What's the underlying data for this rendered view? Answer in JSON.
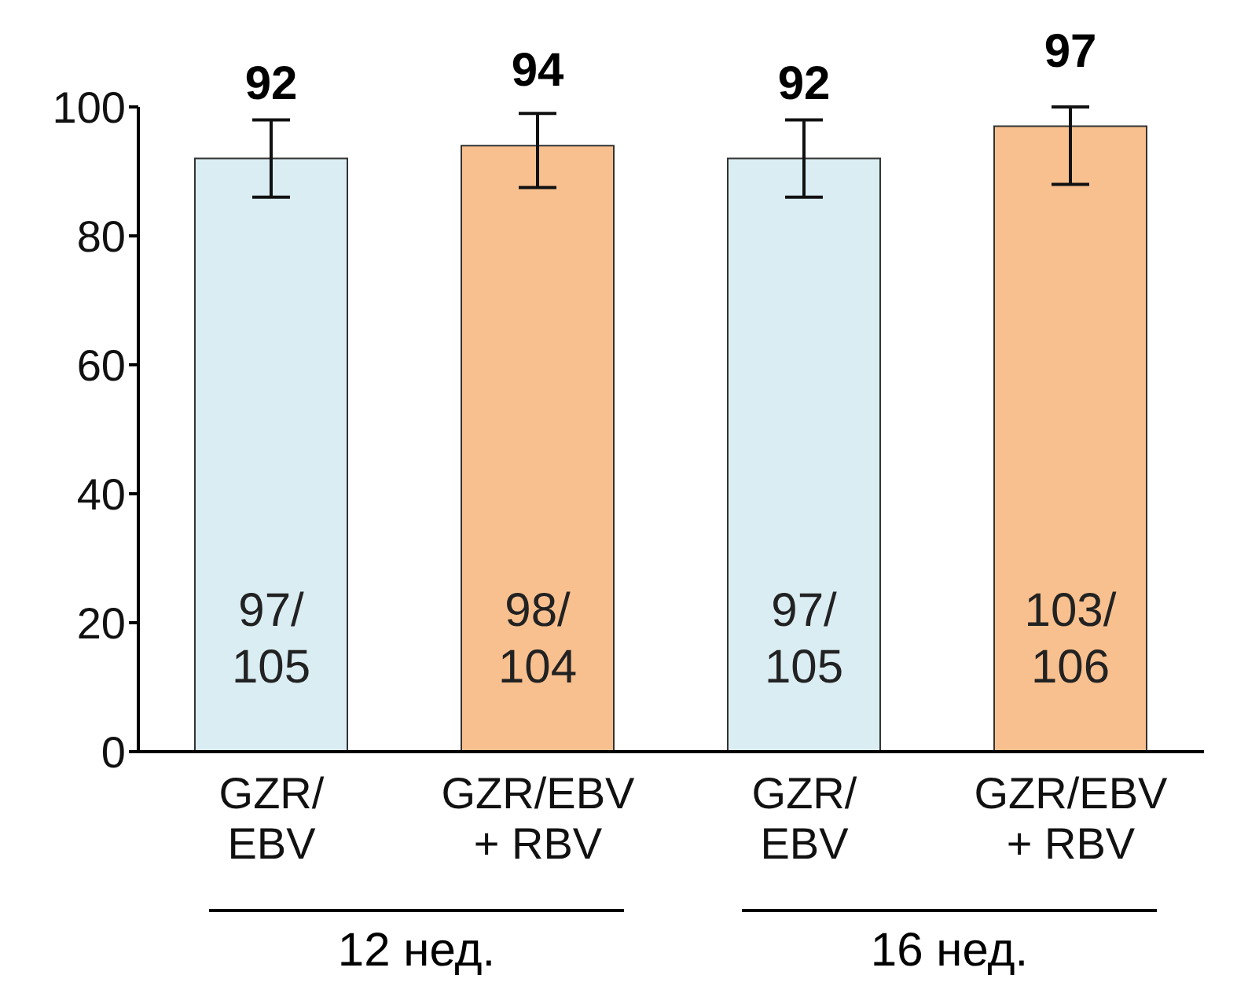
{
  "chart_data": {
    "type": "bar",
    "categories": [
      "GZR/EBV",
      "GZR/EBV + RBV",
      "GZR/EBV",
      "GZR/EBV + RBV"
    ],
    "values": [
      92,
      94,
      92,
      97
    ],
    "colors": [
      "#daedf3",
      "#f8c08f",
      "#daedf3",
      "#f8c08f"
    ],
    "errors": [
      [
        86,
        98
      ],
      [
        87.5,
        99
      ],
      [
        86,
        98
      ],
      [
        88,
        100
      ]
    ],
    "ylim": [
      0,
      100
    ],
    "yticks": [
      0,
      20,
      40,
      60,
      80,
      100
    ],
    "data_labels": true,
    "annotations": [
      "97/105",
      "98/104",
      "97/105",
      "103/106",
      "12 нед.",
      "16 нед."
    ]
  }
}
